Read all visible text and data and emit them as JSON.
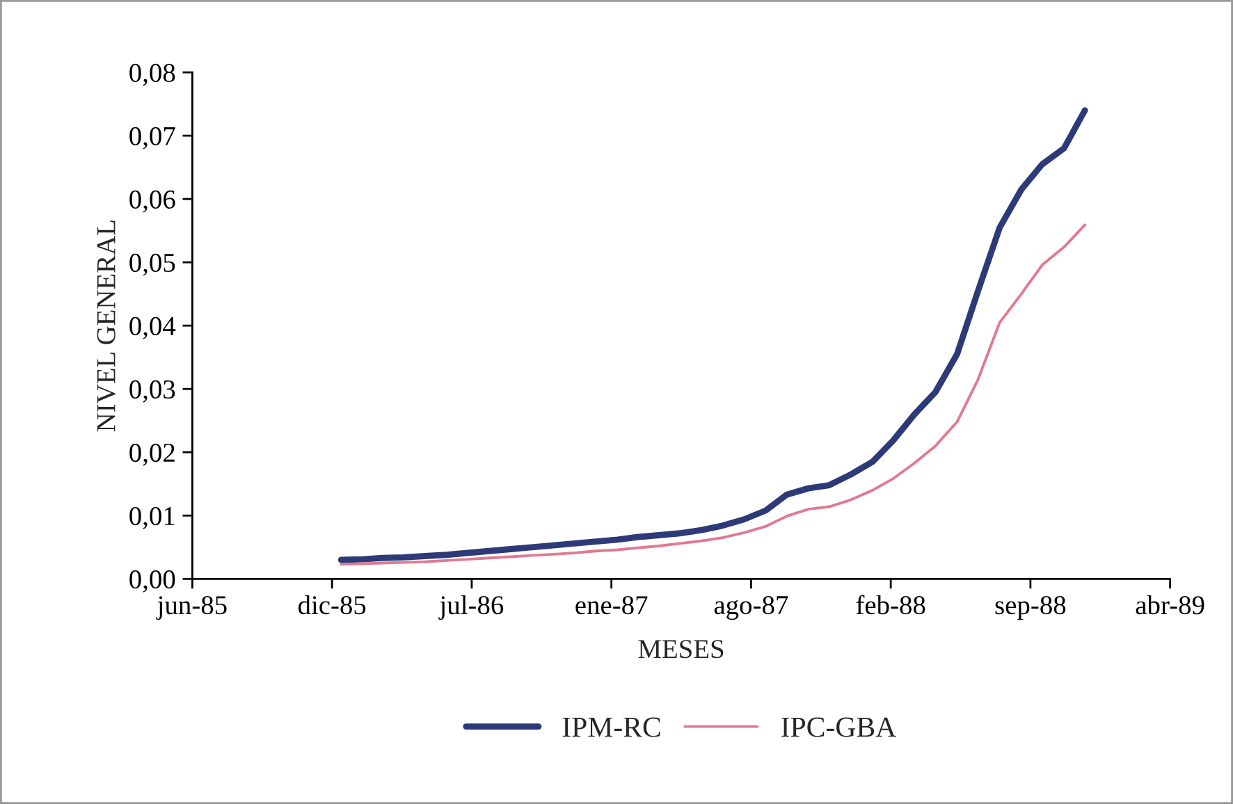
{
  "chart_data": {
    "type": "line",
    "xlabel": "MESES",
    "ylabel": "NIVEL GENERAL",
    "x": [
      "1986-01",
      "1986-02",
      "1986-03",
      "1986-04",
      "1986-05",
      "1986-06",
      "1986-07",
      "1986-08",
      "1986-09",
      "1986-10",
      "1986-11",
      "1986-12",
      "1987-01",
      "1987-02",
      "1987-03",
      "1987-04",
      "1987-05",
      "1987-06",
      "1987-07",
      "1987-08",
      "1987-09",
      "1987-10",
      "1987-11",
      "1987-12",
      "1988-01",
      "1988-02",
      "1988-03",
      "1988-04",
      "1988-05",
      "1988-06",
      "1988-07",
      "1988-08",
      "1988-09",
      "1988-10",
      "1988-11",
      "1988-12"
    ],
    "series": [
      {
        "name": "IPM-RC",
        "color": "#2e3a78",
        "values": [
          0.003,
          0.0031,
          0.0033,
          0.0034,
          0.0036,
          0.0038,
          0.0041,
          0.0044,
          0.0047,
          0.005,
          0.0053,
          0.0056,
          0.0059,
          0.0062,
          0.0066,
          0.0069,
          0.0072,
          0.0077,
          0.0084,
          0.0094,
          0.0108,
          0.0133,
          0.0143,
          0.0148,
          0.0165,
          0.0185,
          0.0218,
          0.026,
          0.0295,
          0.0355,
          0.0455,
          0.0555,
          0.0615,
          0.0655,
          0.068,
          0.074
        ]
      },
      {
        "name": "IPC-GBA",
        "color": "#e07a90",
        "values": [
          0.0023,
          0.0024,
          0.0025,
          0.0026,
          0.0027,
          0.0029,
          0.0031,
          0.0033,
          0.0035,
          0.0037,
          0.0039,
          0.0041,
          0.0044,
          0.0046,
          0.0049,
          0.0052,
          0.0056,
          0.006,
          0.0065,
          0.0073,
          0.0083,
          0.0099,
          0.011,
          0.0114,
          0.0125,
          0.014,
          0.0158,
          0.0183,
          0.021,
          0.0248,
          0.0315,
          0.0405,
          0.045,
          0.0496,
          0.0524,
          0.0559
        ]
      }
    ],
    "xlim": [
      "1985-06-02",
      "1989-04-02"
    ],
    "xticks": [
      {
        "value": "1985-06-02",
        "label": "jun-85"
      },
      {
        "value": "1985-12-19",
        "label": "dic-85"
      },
      {
        "value": "1986-07-07",
        "label": "jul-86"
      },
      {
        "value": "1987-01-23",
        "label": "ene-87"
      },
      {
        "value": "1987-08-11",
        "label": "ago-87"
      },
      {
        "value": "1988-02-27",
        "label": "feb-88"
      },
      {
        "value": "1988-09-14",
        "label": "sep-88"
      },
      {
        "value": "1989-04-02",
        "label": "abr-89"
      }
    ],
    "ylim": [
      0,
      0.08
    ],
    "yticks": [
      {
        "value": 0,
        "label": "0,00"
      },
      {
        "value": 0.01,
        "label": "0,01"
      },
      {
        "value": 0.02,
        "label": "0,02"
      },
      {
        "value": 0.03,
        "label": "0,03"
      },
      {
        "value": 0.04,
        "label": "0,04"
      },
      {
        "value": 0.05,
        "label": "0,05"
      },
      {
        "value": 0.06,
        "label": "0,06"
      },
      {
        "value": 0.07,
        "label": "0,07"
      },
      {
        "value": 0.08,
        "label": "0,08"
      }
    ],
    "grid": false,
    "legend": "bottom",
    "marker": "none",
    "line_style": "solid"
  }
}
